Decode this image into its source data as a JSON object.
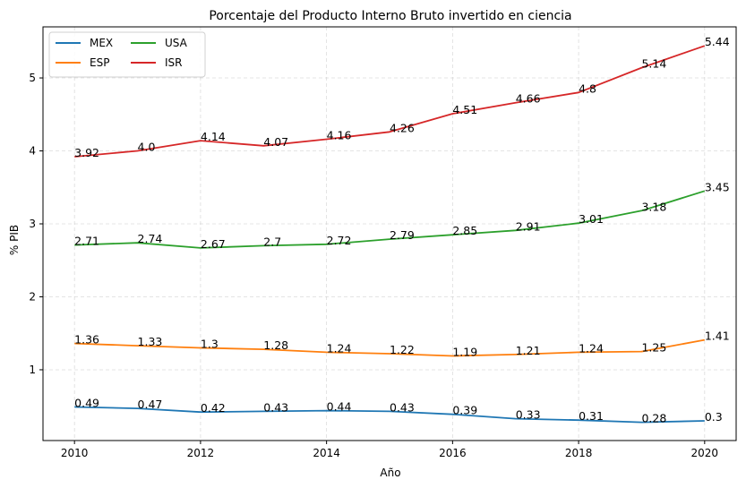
{
  "chart_data": {
    "type": "line",
    "title": "Porcentaje del Producto Interno Bruto invertido en ciencia",
    "xlabel": "Año",
    "ylabel": "% PIB",
    "x": [
      2010,
      2011,
      2012,
      2013,
      2014,
      2015,
      2016,
      2017,
      2018,
      2019,
      2020
    ],
    "xticks": [
      "2010",
      "2012",
      "2014",
      "2016",
      "2018",
      "2020"
    ],
    "yticks": [
      "1",
      "2",
      "3",
      "4",
      "5"
    ],
    "xlim": [
      2009.5,
      2020.5
    ],
    "ylim": [
      0.03,
      5.7
    ],
    "grid": true,
    "legend": "top-left",
    "series": [
      {
        "name": "MEX",
        "color": "#1f77b4",
        "values": [
          0.49,
          0.47,
          0.42,
          0.43,
          0.44,
          0.43,
          0.39,
          0.33,
          0.31,
          0.28,
          0.3
        ],
        "labels": [
          "0.49",
          "0.47",
          "0.42",
          "0.43",
          "0.44",
          "0.43",
          "0.39",
          "0.33",
          "0.31",
          "0.28",
          "0.3"
        ]
      },
      {
        "name": "ESP",
        "color": "#ff7f0e",
        "values": [
          1.36,
          1.33,
          1.3,
          1.28,
          1.24,
          1.22,
          1.19,
          1.21,
          1.24,
          1.25,
          1.41
        ],
        "labels": [
          "1.36",
          "1.33",
          "1.3",
          "1.28",
          "1.24",
          "1.22",
          "1.19",
          "1.21",
          "1.24",
          "1.25",
          "1.41"
        ]
      },
      {
        "name": "USA",
        "color": "#2ca02c",
        "values": [
          2.71,
          2.74,
          2.67,
          2.7,
          2.72,
          2.79,
          2.85,
          2.91,
          3.01,
          3.18,
          3.45
        ],
        "labels": [
          "2.71",
          "2.74",
          "2.67",
          "2.7",
          "2.72",
          "2.79",
          "2.85",
          "2.91",
          "3.01",
          "3.18",
          "3.45"
        ]
      },
      {
        "name": "ISR",
        "color": "#d62728",
        "values": [
          3.92,
          4.0,
          4.14,
          4.07,
          4.16,
          4.26,
          4.51,
          4.66,
          4.8,
          5.14,
          5.44
        ],
        "labels": [
          "3.92",
          "4.0",
          "4.14",
          "4.07",
          "4.16",
          "4.26",
          "4.51",
          "4.66",
          "4.8",
          "5.14",
          "5.44"
        ]
      }
    ]
  }
}
